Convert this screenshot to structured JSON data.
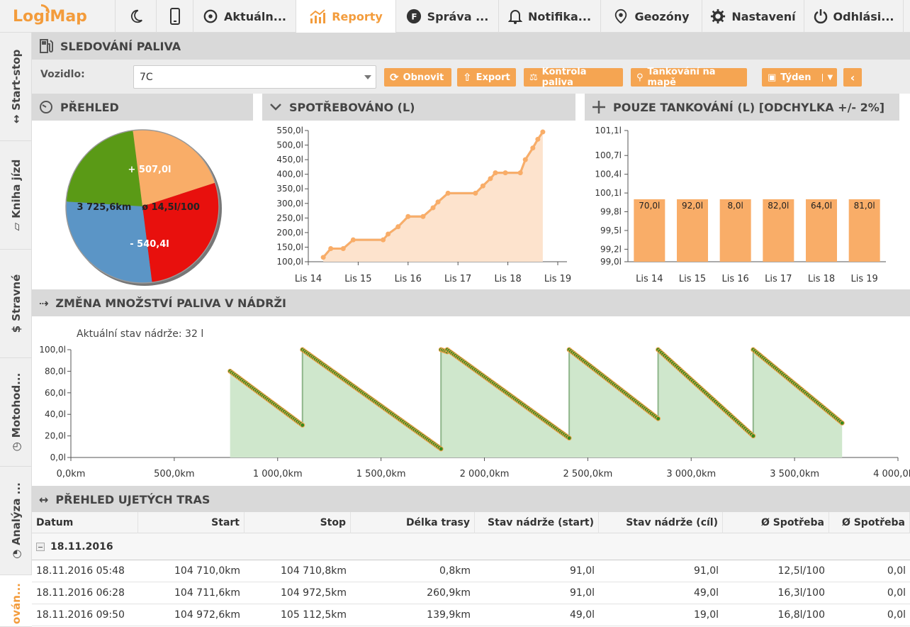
{
  "logo": {
    "part1": "Logi",
    "part2": "Map"
  },
  "topbar": {
    "items": [
      {
        "label": "Aktuáln...",
        "icon": "dashboard-icon"
      },
      {
        "label": "Reporty",
        "icon": "chart-icon"
      },
      {
        "label": "Správa ...",
        "icon": "fleet-icon"
      },
      {
        "label": "Notifika...",
        "icon": "bell-icon"
      },
      {
        "label": "Geozóny",
        "icon": "geozone-icon"
      },
      {
        "label": "Nastavení",
        "icon": "gear-icon"
      },
      {
        "label": "Odhlási...",
        "icon": "power-icon"
      }
    ]
  },
  "sidebar": {
    "tabs": [
      {
        "label": "Start-stop"
      },
      {
        "label": "Kniha jízd"
      },
      {
        "label": "Stravné"
      },
      {
        "label": "Motohod..."
      },
      {
        "label": "Analýza ..."
      },
      {
        "label": "ován..."
      }
    ]
  },
  "header": {
    "title": "SLEDOVÁNÍ PALIVA"
  },
  "controls": {
    "vehicle_label": "Vozidlo:",
    "vehicle_value": "7C",
    "refresh": "Obnovit",
    "export": "Export",
    "fuel_check": "Kontrola paliva",
    "refuel_map": "Tankování na mapě",
    "period": "Týden"
  },
  "panels": {
    "overview": "PŘEHLED",
    "consumed": "SPOTŘEBOVÁNO (L)",
    "refuels": "POUZE TANKOVÁNÍ (L) [ODCHYLKA +/- 2%]",
    "tank_change": "ZMĚNA MNOŽSTVÍ PALIVA V NÁDRŽI",
    "trips": "PŘEHLED UJETÝCH TRAS"
  },
  "chart_data": [
    {
      "type": "pie",
      "labels": [
        "+ 507,0l",
        "ø 14,5l/100",
        "- 540,4l",
        "3 725,6km"
      ],
      "values": [
        22,
        22,
        28,
        28
      ],
      "colors": [
        "#5a9a16",
        "#f9ad68",
        "#e8100d",
        "#5b95c6"
      ]
    },
    {
      "type": "area",
      "x_ticks": [
        "Lis 14",
        "Lis 15",
        "Lis 16",
        "Lis 17",
        "Lis 18",
        "Lis 19"
      ],
      "y_ticks": [
        "100,0l",
        "150,0l",
        "200,0l",
        "250,0l",
        "300,0l",
        "350,0l",
        "400,0l",
        "450,0l",
        "500,0l",
        "550,0l"
      ],
      "ylim": [
        100,
        550
      ],
      "x_range": [
        14,
        19
      ],
      "points": [
        [
          14.3,
          115
        ],
        [
          14.45,
          145
        ],
        [
          14.7,
          145
        ],
        [
          14.9,
          175
        ],
        [
          15.5,
          175
        ],
        [
          15.6,
          195
        ],
        [
          15.8,
          220
        ],
        [
          16.0,
          255
        ],
        [
          16.3,
          255
        ],
        [
          16.5,
          285
        ],
        [
          16.6,
          305
        ],
        [
          16.8,
          335
        ],
        [
          17.35,
          335
        ],
        [
          17.5,
          360
        ],
        [
          17.65,
          385
        ],
        [
          17.75,
          405
        ],
        [
          17.95,
          405
        ],
        [
          18.25,
          405
        ],
        [
          18.35,
          450
        ],
        [
          18.5,
          490
        ],
        [
          18.6,
          520
        ],
        [
          18.7,
          545
        ]
      ],
      "color": "#f9ad68"
    },
    {
      "type": "bar",
      "categories": [
        "Lis 14",
        "Lis 15",
        "Lis 16",
        "Lis 17",
        "Lis 18",
        "Lis 19"
      ],
      "labels": [
        "70,0l",
        "92,0l",
        "8,0l",
        "82,0l",
        "64,0l",
        "81,0l"
      ],
      "y_ticks": [
        "99,0l",
        "99,2l",
        "99,5l",
        "99,8l",
        "100,1l",
        "100,4l",
        "100,7l",
        "101,1l"
      ],
      "bar_level": 100.0,
      "ylim": [
        99.0,
        101.1
      ],
      "color": "#f9ad68"
    },
    {
      "type": "area",
      "annotation": "Aktuální stav nádrže: 32 l",
      "x_ticks": [
        "0,0km",
        "500,0km",
        "1 000,0km",
        "1 500,0km",
        "2 000,0km",
        "2 500,0km",
        "3 000,0km",
        "3 500,0km",
        "4 000,0km"
      ],
      "y_ticks": [
        "0,0l",
        "20,0l",
        "40,0l",
        "60,0l",
        "80,0l",
        "100,0l"
      ],
      "xlim": [
        0,
        4000
      ],
      "ylim": [
        0,
        100
      ],
      "points": [
        [
          770,
          80
        ],
        [
          1120,
          30
        ],
        [
          1120,
          100
        ],
        [
          1790,
          8
        ],
        [
          1790,
          100
        ],
        [
          1820,
          98
        ],
        [
          1820,
          100
        ],
        [
          2410,
          18
        ],
        [
          2410,
          100
        ],
        [
          2840,
          36
        ],
        [
          2840,
          100
        ],
        [
          3300,
          20
        ],
        [
          3300,
          100
        ],
        [
          3730,
          32
        ]
      ],
      "color": "#cfe7cc"
    }
  ],
  "table": {
    "columns": [
      "Datum",
      "Start",
      "Stop",
      "Délka trasy",
      "Stav nádrže (start)",
      "Stav nádrže (cíl)",
      "Ø Spotřeba",
      "Ø Spotřeba"
    ],
    "group": "18.11.2016",
    "rows": [
      [
        "18.11.2016 05:48",
        "104 710,0km",
        "104 710,8km",
        "0,8km",
        "91,0l",
        "91,0l",
        "12,5l/100",
        "0,0l"
      ],
      [
        "18.11.2016 06:28",
        "104 711,6km",
        "104 972,5km",
        "260,9km",
        "91,0l",
        "49,0l",
        "16,3l/100",
        "0,0l"
      ],
      [
        "18.11.2016 09:50",
        "104 972,6km",
        "105 112,5km",
        "139,9km",
        "49,0l",
        "19,0l",
        "16,8l/100",
        "0,0l"
      ]
    ]
  }
}
